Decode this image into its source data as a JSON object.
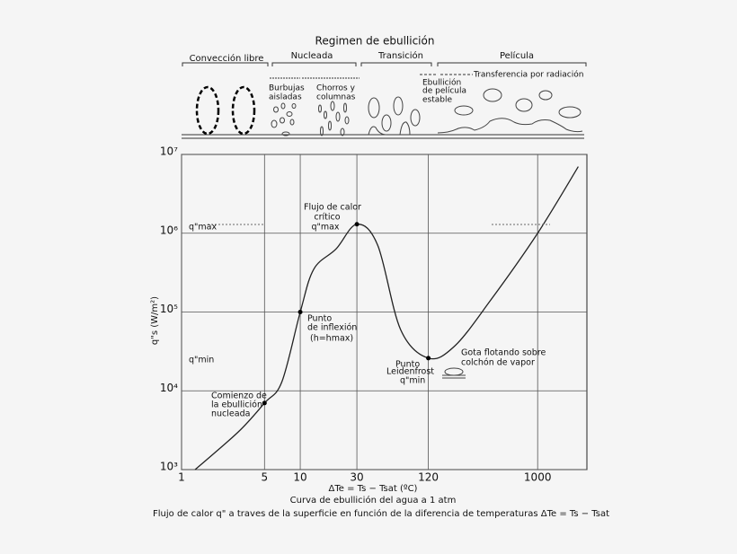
{
  "chart_data": {
    "type": "line",
    "log_x": true,
    "log_y": true,
    "grid": true,
    "color": "#222222",
    "title": "Regimen de ebullición",
    "regimes": [
      "Convección libre",
      "Nucleada",
      "Transición",
      "Película"
    ],
    "regime_notes": [
      "Burbujas",
      "aisladas",
      "Chorros y",
      "columnas",
      "Ebullición",
      "de película",
      "estable",
      "Transferencia por radiación"
    ],
    "x_label": "ΔTe = Ts − Tsat (ºC)",
    "y_label": "q\"s (W/m²)",
    "captions": [
      "Curva de ebullición del agua a 1 atm",
      "Flujo de calor q\" a traves de la superficie en función de la diferencia de temperaturas ΔTe = Ts − Tsat"
    ],
    "x": [
      1.3,
      3,
      5,
      7,
      10,
      13,
      20,
      30,
      45,
      70,
      120,
      200,
      400,
      1000,
      2200
    ],
    "values": [
      1000,
      3000,
      7000,
      13000,
      100000,
      350000,
      630000,
      1300000,
      700000,
      60000,
      26000,
      37000,
      140000,
      1000000,
      7000000
    ],
    "xlim": [
      1,
      2600
    ],
    "ylim": [
      1000,
      10000000
    ],
    "xticks": [
      1,
      5,
      10,
      30,
      120,
      1000
    ],
    "yticks": [
      {
        "value": 1000,
        "label": "10³"
      },
      {
        "value": 10000,
        "label": "10⁴"
      },
      {
        "value": 100000,
        "label": "10⁵"
      },
      {
        "value": 1000000,
        "label": "10⁶"
      },
      {
        "value": 10000000,
        "label": "10⁷"
      }
    ],
    "annotations": [
      "Flujo de calor",
      "crítico",
      "q\"max",
      "Punto",
      "de inflexión",
      "(h=hmax)",
      "Comienzo de",
      "la ebullición",
      "nucleada",
      "Punto",
      "Leidenfrost",
      "q\"min",
      "Gota flotando sobre",
      "colchón de vapor",
      "q\"max",
      "q\"min"
    ]
  }
}
